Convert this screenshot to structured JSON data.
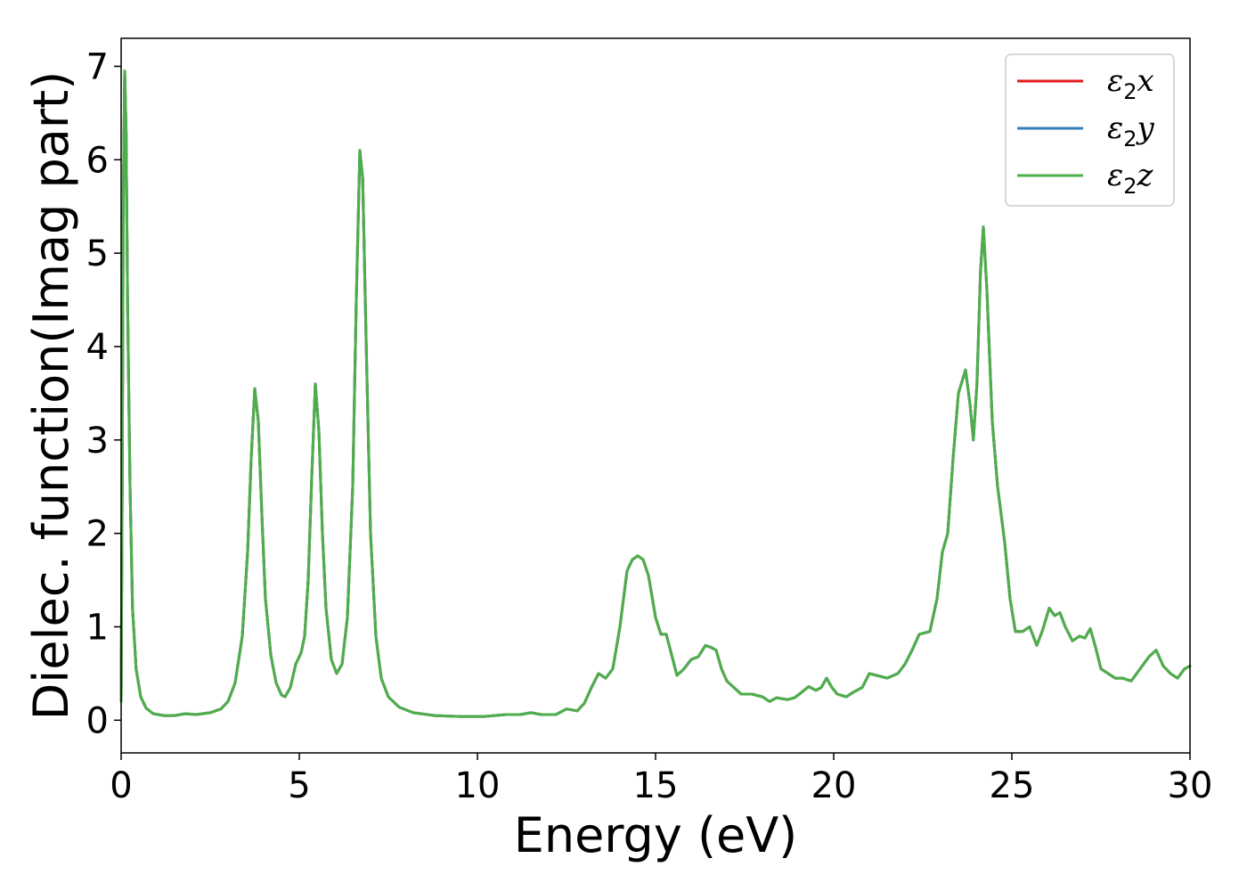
{
  "chart_data": {
    "type": "line",
    "title": "",
    "xlabel": "Energy (eV)",
    "ylabel": "Dielec. function(Imag part)",
    "xlim": [
      0,
      30
    ],
    "ylim": [
      -0.35,
      7.3
    ],
    "xticks": [
      0,
      5,
      10,
      15,
      20,
      25,
      30
    ],
    "yticks": [
      0,
      1,
      2,
      3,
      4,
      5,
      6,
      7
    ],
    "grid": false,
    "legend_position": "top-right",
    "legend": [
      {
        "base": "ε",
        "sub": "2",
        "comp": "x"
      },
      {
        "base": "ε",
        "sub": "2",
        "comp": "y"
      },
      {
        "base": "ε",
        "sub": "2",
        "comp": "z"
      }
    ],
    "series": [
      {
        "color": "#e41a1c",
        "points": "shared"
      },
      {
        "color": "#377eb8",
        "points": "shared"
      },
      {
        "color": "#4daf4a",
        "points": "shared"
      }
    ],
    "points": [
      [
        0.0,
        0.2
      ],
      [
        0.03,
        2.5
      ],
      [
        0.06,
        5.5
      ],
      [
        0.1,
        6.95
      ],
      [
        0.14,
        6.3
      ],
      [
        0.18,
        4.5
      ],
      [
        0.25,
        2.5
      ],
      [
        0.32,
        1.2
      ],
      [
        0.42,
        0.55
      ],
      [
        0.55,
        0.25
      ],
      [
        0.7,
        0.13
      ],
      [
        0.9,
        0.07
      ],
      [
        1.2,
        0.05
      ],
      [
        1.5,
        0.05
      ],
      [
        1.8,
        0.07
      ],
      [
        2.1,
        0.06
      ],
      [
        2.5,
        0.08
      ],
      [
        2.8,
        0.12
      ],
      [
        3.0,
        0.2
      ],
      [
        3.2,
        0.4
      ],
      [
        3.4,
        0.9
      ],
      [
        3.55,
        1.8
      ],
      [
        3.65,
        2.8
      ],
      [
        3.75,
        3.55
      ],
      [
        3.85,
        3.2
      ],
      [
        3.95,
        2.2
      ],
      [
        4.05,
        1.3
      ],
      [
        4.2,
        0.7
      ],
      [
        4.35,
        0.4
      ],
      [
        4.5,
        0.27
      ],
      [
        4.6,
        0.25
      ],
      [
        4.75,
        0.35
      ],
      [
        4.9,
        0.6
      ],
      [
        5.05,
        0.72
      ],
      [
        5.15,
        0.9
      ],
      [
        5.25,
        1.5
      ],
      [
        5.35,
        2.6
      ],
      [
        5.45,
        3.6
      ],
      [
        5.55,
        3.1
      ],
      [
        5.65,
        2.0
      ],
      [
        5.75,
        1.2
      ],
      [
        5.9,
        0.65
      ],
      [
        6.05,
        0.5
      ],
      [
        6.2,
        0.6
      ],
      [
        6.35,
        1.1
      ],
      [
        6.5,
        2.5
      ],
      [
        6.6,
        4.5
      ],
      [
        6.7,
        6.1
      ],
      [
        6.78,
        5.8
      ],
      [
        6.88,
        4.0
      ],
      [
        7.0,
        2.0
      ],
      [
        7.15,
        0.9
      ],
      [
        7.3,
        0.45
      ],
      [
        7.5,
        0.25
      ],
      [
        7.8,
        0.14
      ],
      [
        8.2,
        0.08
      ],
      [
        8.8,
        0.05
      ],
      [
        9.5,
        0.04
      ],
      [
        10.2,
        0.04
      ],
      [
        10.8,
        0.06
      ],
      [
        11.2,
        0.06
      ],
      [
        11.5,
        0.08
      ],
      [
        11.8,
        0.06
      ],
      [
        12.2,
        0.06
      ],
      [
        12.5,
        0.12
      ],
      [
        12.8,
        0.1
      ],
      [
        13.0,
        0.18
      ],
      [
        13.2,
        0.35
      ],
      [
        13.4,
        0.5
      ],
      [
        13.6,
        0.45
      ],
      [
        13.8,
        0.55
      ],
      [
        14.0,
        1.0
      ],
      [
        14.2,
        1.6
      ],
      [
        14.35,
        1.72
      ],
      [
        14.5,
        1.76
      ],
      [
        14.65,
        1.72
      ],
      [
        14.8,
        1.55
      ],
      [
        15.0,
        1.1
      ],
      [
        15.15,
        0.92
      ],
      [
        15.3,
        0.92
      ],
      [
        15.45,
        0.7
      ],
      [
        15.6,
        0.48
      ],
      [
        15.8,
        0.55
      ],
      [
        16.0,
        0.65
      ],
      [
        16.2,
        0.68
      ],
      [
        16.4,
        0.8
      ],
      [
        16.55,
        0.78
      ],
      [
        16.7,
        0.75
      ],
      [
        16.85,
        0.55
      ],
      [
        17.0,
        0.42
      ],
      [
        17.2,
        0.35
      ],
      [
        17.4,
        0.28
      ],
      [
        17.7,
        0.28
      ],
      [
        18.0,
        0.25
      ],
      [
        18.2,
        0.2
      ],
      [
        18.4,
        0.24
      ],
      [
        18.7,
        0.22
      ],
      [
        18.9,
        0.24
      ],
      [
        19.1,
        0.3
      ],
      [
        19.3,
        0.36
      ],
      [
        19.5,
        0.32
      ],
      [
        19.65,
        0.35
      ],
      [
        19.8,
        0.45
      ],
      [
        19.95,
        0.35
      ],
      [
        20.1,
        0.28
      ],
      [
        20.35,
        0.25
      ],
      [
        20.55,
        0.3
      ],
      [
        20.8,
        0.35
      ],
      [
        21.0,
        0.5
      ],
      [
        21.2,
        0.48
      ],
      [
        21.5,
        0.45
      ],
      [
        21.8,
        0.5
      ],
      [
        22.0,
        0.6
      ],
      [
        22.2,
        0.75
      ],
      [
        22.4,
        0.92
      ],
      [
        22.7,
        0.95
      ],
      [
        22.9,
        1.3
      ],
      [
        23.05,
        1.8
      ],
      [
        23.2,
        2.0
      ],
      [
        23.35,
        2.8
      ],
      [
        23.5,
        3.5
      ],
      [
        23.7,
        3.75
      ],
      [
        23.82,
        3.4
      ],
      [
        23.92,
        3.0
      ],
      [
        24.02,
        3.6
      ],
      [
        24.12,
        4.8
      ],
      [
        24.2,
        5.28
      ],
      [
        24.3,
        4.6
      ],
      [
        24.45,
        3.2
      ],
      [
        24.6,
        2.5
      ],
      [
        24.8,
        1.9
      ],
      [
        24.95,
        1.3
      ],
      [
        25.1,
        0.95
      ],
      [
        25.3,
        0.95
      ],
      [
        25.5,
        1.0
      ],
      [
        25.7,
        0.8
      ],
      [
        25.85,
        0.95
      ],
      [
        26.05,
        1.2
      ],
      [
        26.2,
        1.12
      ],
      [
        26.35,
        1.15
      ],
      [
        26.5,
        1.0
      ],
      [
        26.7,
        0.85
      ],
      [
        26.9,
        0.9
      ],
      [
        27.05,
        0.88
      ],
      [
        27.2,
        0.98
      ],
      [
        27.35,
        0.78
      ],
      [
        27.5,
        0.55
      ],
      [
        27.7,
        0.5
      ],
      [
        27.9,
        0.45
      ],
      [
        28.1,
        0.45
      ],
      [
        28.35,
        0.42
      ],
      [
        28.6,
        0.55
      ],
      [
        28.85,
        0.68
      ],
      [
        29.05,
        0.75
      ],
      [
        29.25,
        0.58
      ],
      [
        29.45,
        0.5
      ],
      [
        29.65,
        0.45
      ],
      [
        29.85,
        0.55
      ],
      [
        30.0,
        0.58
      ]
    ]
  }
}
